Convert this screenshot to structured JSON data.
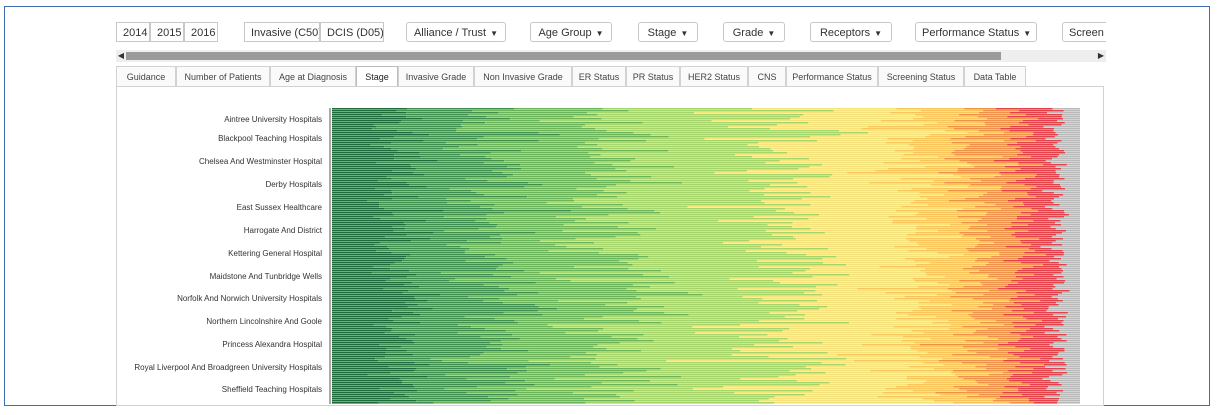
{
  "filters": {
    "years": [
      "2014",
      "2015",
      "2016"
    ],
    "tumour_types": [
      "Invasive (C50)",
      "DCIS (D05)"
    ],
    "dropdowns": [
      "Alliance / Trust",
      "Age Group",
      "Stage",
      "Grade",
      "Receptors",
      "Performance Status",
      "Screen"
    ]
  },
  "tabs": [
    "Guidance",
    "Number of Patients",
    "Age at Diagnosis",
    "Stage",
    "Invasive Grade",
    "Non Invasive Grade",
    "ER Status",
    "PR Status",
    "HER2 Status",
    "CNS",
    "Performance Status",
    "Screening Status",
    "Data Table"
  ],
  "active_tab": "Stage",
  "colors": {
    "stage_segments": [
      "#1e6b3c",
      "#3f8f4f",
      "#6cb45a",
      "#a5d46a",
      "#f6e27a",
      "#f9c55a",
      "#f0914a",
      "#e5414b",
      "#b9b9b9"
    ],
    "frame_border": "#3f6fb0"
  },
  "chart_data": {
    "type": "bar",
    "orientation": "horizontal",
    "stacked": "100%",
    "hospital_labels": [
      "Aintree University Hospitals",
      "Blackpool Teaching Hospitals",
      "Chelsea And Westminster Hospital",
      "Derby Hospitals",
      "East Sussex Healthcare",
      "Harrogate And District",
      "Kettering General Hospital",
      "Maidstone And Tunbridge Wells",
      "Norfolk And Norwich University Hospitals",
      "Northern Lincolnshire And Goole",
      "Princess Alexandra Hospital",
      "Royal Liverpool And Broadgreen University Hospitals",
      "Sheffield Teaching Hospitals"
    ]
  }
}
